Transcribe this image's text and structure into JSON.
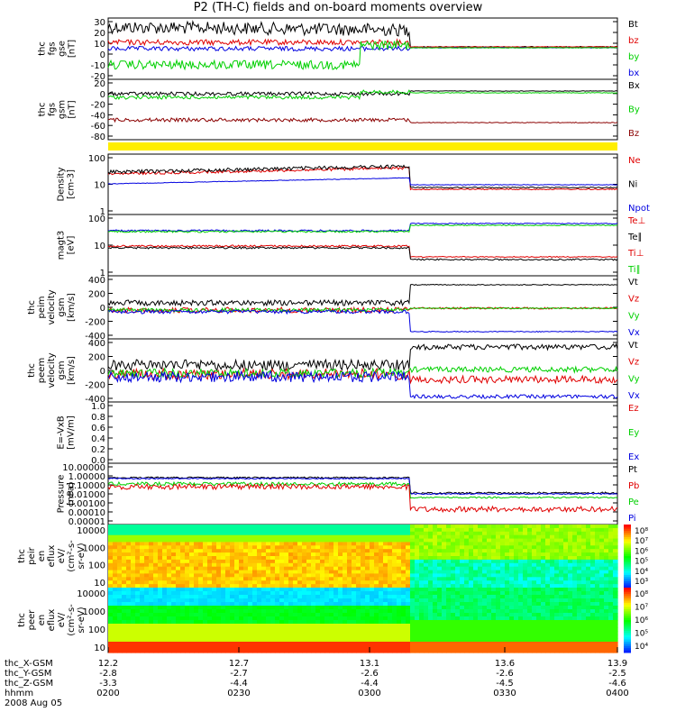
{
  "title": "P2 (TH-C) fields and on-board moments overview",
  "colors": {
    "black": "#000000",
    "red": "#e00000",
    "green": "#00d000",
    "blue": "#0000e0",
    "darkred": "#8b0000",
    "yellow": "#ffee00"
  },
  "chart_data": [
    {
      "type": "line",
      "panel": "fgs_gse",
      "ylabel": [
        "thc",
        "fgs",
        "gse",
        "[nT]"
      ],
      "ylim": [
        -30,
        30
      ],
      "yticks": [
        "30",
        "20",
        "10",
        "0",
        "-10",
        "-20"
      ],
      "series": [
        {
          "name": "Bt",
          "color": "black"
        },
        {
          "name": "bz",
          "color": "red"
        },
        {
          "name": "by",
          "color": "green"
        },
        {
          "name": "bx",
          "color": "blue"
        }
      ]
    },
    {
      "type": "line",
      "panel": "fgs_gsm",
      "ylabel": [
        "thc",
        "fgs",
        "gsm",
        "[nT]"
      ],
      "ylim": [
        -90,
        20
      ],
      "yticks": [
        "20",
        "0",
        "-20",
        "-40",
        "-60",
        "-80"
      ],
      "series": [
        {
          "name": "Bx",
          "color": "black"
        },
        {
          "name": "By",
          "color": "green"
        },
        {
          "name": "Bz",
          "color": "darkred"
        }
      ]
    },
    {
      "type": "line",
      "panel": "density",
      "ylabel": [
        "Density",
        "[cm-3]"
      ],
      "scale": "log",
      "ylim": [
        1,
        100
      ],
      "yticks": [
        "100",
        "10",
        "1"
      ],
      "series": [
        {
          "name": "Ne",
          "color": "red"
        },
        {
          "name": "Ni",
          "color": "black"
        },
        {
          "name": "Npot",
          "color": "blue"
        }
      ]
    },
    {
      "type": "line",
      "panel": "temperature",
      "ylabel": [
        "magt3",
        "[eV]"
      ],
      "scale": "log",
      "ylim": [
        1,
        1000
      ],
      "yticks": [
        "100",
        "10",
        "1"
      ],
      "series": [
        {
          "name": "Te⊥",
          "color": "red"
        },
        {
          "name": "Te∥",
          "color": "black"
        },
        {
          "name": "Ti⊥",
          "color": "red"
        },
        {
          "name": "Ti∥",
          "color": "green"
        }
      ]
    },
    {
      "type": "line",
      "panel": "velocity_gsm",
      "ylabel": [
        "thc",
        "peim",
        "velocity",
        "gsm",
        "[km/s]"
      ],
      "ylim": [
        -400,
        400
      ],
      "yticks": [
        "400",
        "200",
        "0",
        "-200",
        "-400"
      ],
      "series": [
        {
          "name": "Vt",
          "color": "black"
        },
        {
          "name": "Vz",
          "color": "red"
        },
        {
          "name": "Vy",
          "color": "green"
        },
        {
          "name": "Vx",
          "color": "blue"
        }
      ]
    },
    {
      "type": "line",
      "panel": "velocity_gsm2",
      "ylabel": [
        "thc",
        "peem",
        "velocity",
        "gsm",
        "[km/s]"
      ],
      "ylim": [
        -400,
        400
      ],
      "yticks": [
        "400",
        "200",
        "0",
        "-200",
        "-400"
      ],
      "series": [
        {
          "name": "Vt",
          "color": "black"
        },
        {
          "name": "Vz",
          "color": "red"
        },
        {
          "name": "Vy",
          "color": "green"
        },
        {
          "name": "Vx",
          "color": "blue"
        }
      ]
    },
    {
      "type": "line",
      "panel": "efield",
      "ylabel": [
        "E=-VxB",
        "[mV/m]"
      ],
      "ylim": [
        0,
        1
      ],
      "yticks": [
        "1.0",
        "0.8",
        "0.6",
        "0.4",
        "0.2",
        "0.0"
      ],
      "series": [
        {
          "name": "Ez",
          "color": "red"
        },
        {
          "name": "Ey",
          "color": "green"
        },
        {
          "name": "Ex",
          "color": "blue"
        }
      ]
    },
    {
      "type": "line",
      "panel": "pressure",
      "ylabel": [
        "Pressure",
        "[nPa]"
      ],
      "scale": "log",
      "ylim": [
        1e-05,
        10
      ],
      "yticks": [
        "10.00000",
        "1.00000",
        "0.10000",
        "0.01000",
        "0.00100",
        "0.00010",
        "0.00001"
      ],
      "series": [
        {
          "name": "Pt",
          "color": "black"
        },
        {
          "name": "Pb",
          "color": "red"
        },
        {
          "name": "Pe",
          "color": "green"
        },
        {
          "name": "Pi",
          "color": "blue"
        }
      ]
    },
    {
      "type": "heatmap",
      "panel": "peir_eflux",
      "ylabel": [
        "thc",
        "peir",
        "en",
        "eflux",
        "eV/",
        "(cm²-s-",
        "sr-eV)"
      ],
      "ylim": [
        10,
        10000
      ],
      "yticks": [
        "10000",
        "1000",
        "100",
        "10"
      ],
      "colorbar": [
        "10⁸",
        "10⁷",
        "10⁶",
        "10⁵",
        "10⁴",
        "10³"
      ]
    },
    {
      "type": "heatmap",
      "panel": "peer_eflux",
      "ylabel": [
        "thc",
        "peer",
        "en",
        "eflux",
        "eV/",
        "(cm²-s-",
        "sr-eV)"
      ],
      "ylim": [
        10,
        10000
      ],
      "yticks": [
        "10000",
        "1000",
        "100",
        "10"
      ],
      "colorbar": [
        "10⁸",
        "10⁷",
        "10⁶",
        "10⁵",
        "10⁴"
      ]
    }
  ],
  "xaxis": {
    "rows": [
      {
        "label": "thc_X-GSM",
        "values": [
          "12.2",
          "12.7",
          "13.1",
          "13.6",
          "13.9"
        ]
      },
      {
        "label": "thc_Y-GSM",
        "values": [
          "-2.8",
          "-2.7",
          "-2.6",
          "-2.6",
          "-2.5"
        ]
      },
      {
        "label": "thc_Z-GSM",
        "values": [
          "-3.3",
          "-4.4",
          "-4.4",
          "-4.5",
          "-4.6"
        ]
      },
      {
        "label": "hhmm",
        "values": [
          "0200",
          "0230",
          "0300",
          "0330",
          "0400"
        ]
      }
    ],
    "date": "2008 Aug 05"
  }
}
